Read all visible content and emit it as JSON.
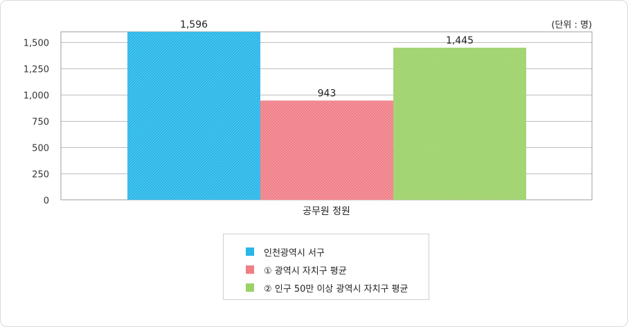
{
  "unit_label": "(단위 : 명)",
  "colors": {
    "series_1": "#29b6e8",
    "series_2": "#f07e86",
    "series_3": "#9cd167",
    "grid": "#bdbdbd",
    "axis": "#9e9e9e"
  },
  "chart_data": {
    "type": "bar",
    "categories": [
      "공무원 정원"
    ],
    "series": [
      {
        "name": "인천광역시 서구",
        "values": [
          1596
        ]
      },
      {
        "name": "① 광역시 자치구 평균",
        "values": [
          943
        ]
      },
      {
        "name": "② 인구 50만 이상 광역시 자치구 평균",
        "values": [
          1445
        ]
      }
    ],
    "data_labels": [
      "1,596",
      "943",
      "1,445"
    ],
    "yticks": [
      "0",
      "250",
      "500",
      "750",
      "1,000",
      "1,250",
      "1,500"
    ],
    "ylim": [
      0,
      1596
    ],
    "grid": true,
    "legend_position": "bottom"
  },
  "legend": {
    "items": [
      "인천광역시 서구",
      "① 광역시 자치구 평균",
      "② 인구 50만 이상 광역시 자치구 평균"
    ]
  }
}
